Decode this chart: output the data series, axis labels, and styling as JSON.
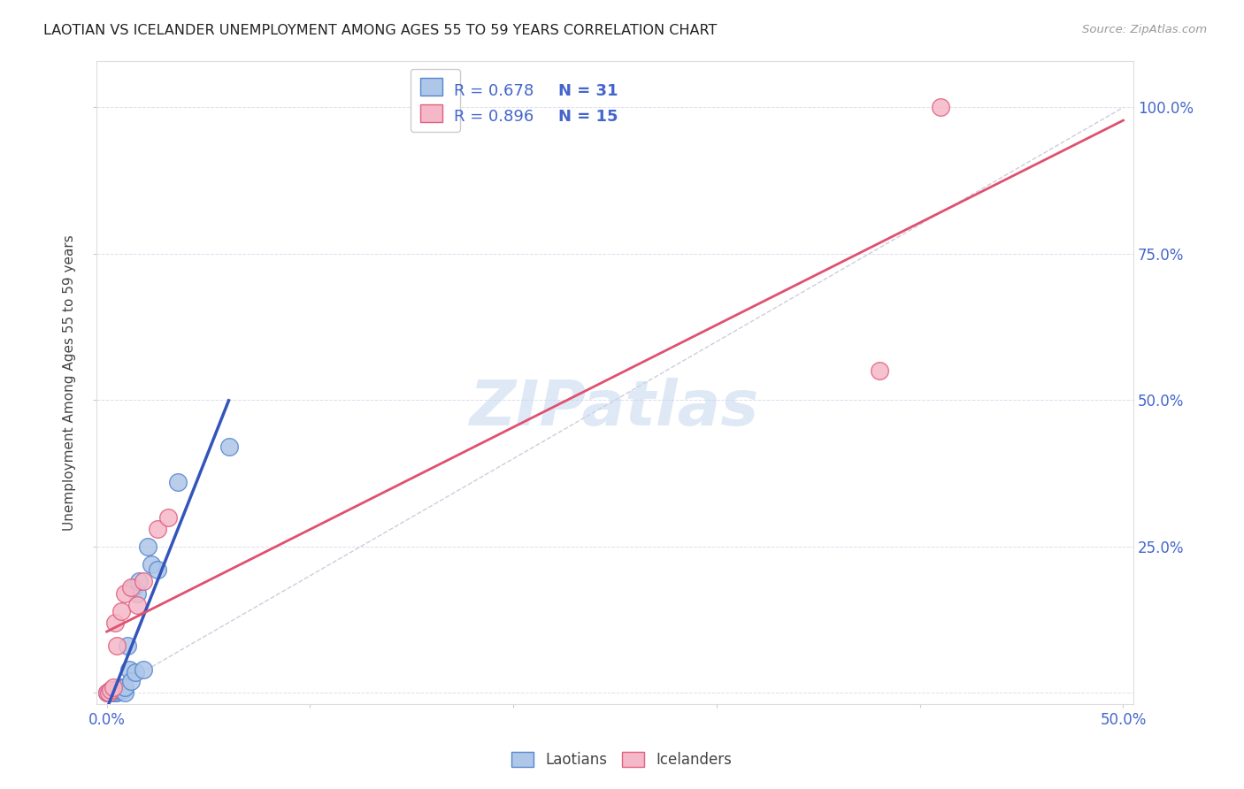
{
  "title": "LAOTIAN VS ICELANDER UNEMPLOYMENT AMONG AGES 55 TO 59 YEARS CORRELATION CHART",
  "source": "Source: ZipAtlas.com",
  "ylabel_label": "Unemployment Among Ages 55 to 59 years",
  "xlim": [
    -0.005,
    0.505
  ],
  "ylim": [
    -0.02,
    1.08
  ],
  "xticks": [
    0.0,
    0.1,
    0.2,
    0.3,
    0.4,
    0.5
  ],
  "yticks": [
    0.0,
    0.25,
    0.5,
    0.75,
    1.0
  ],
  "xtick_labels": [
    "0.0%",
    "",
    "",
    "",
    "",
    "50.0%"
  ],
  "ytick_labels_right": [
    "",
    "25.0%",
    "50.0%",
    "75.0%",
    "100.0%"
  ],
  "laotian_color": "#aec6e8",
  "icelander_color": "#f5b8c8",
  "laotian_edge_color": "#5588cc",
  "icelander_edge_color": "#e06080",
  "trend_laotian_color": "#3355bb",
  "trend_icelander_color": "#e05070",
  "diagonal_color": "#c8c8d8",
  "r_laotian": 0.678,
  "n_laotian": 31,
  "r_icelander": 0.896,
  "n_icelander": 15,
  "legend_color": "#4466cc",
  "watermark_color": "#c5d8ee",
  "background_color": "#ffffff",
  "grid_color": "#ddddee",
  "laotian_x": [
    0.0,
    0.001,
    0.002,
    0.002,
    0.003,
    0.003,
    0.004,
    0.004,
    0.005,
    0.005,
    0.005,
    0.006,
    0.006,
    0.007,
    0.007,
    0.008,
    0.009,
    0.009,
    0.01,
    0.011,
    0.012,
    0.013,
    0.014,
    0.015,
    0.016,
    0.018,
    0.02,
    0.022,
    0.025,
    0.035,
    0.06
  ],
  "laotian_y": [
    0.0,
    0.0,
    0.0,
    0.005,
    0.0,
    0.002,
    0.005,
    0.002,
    0.005,
    0.0,
    0.002,
    0.005,
    0.008,
    0.005,
    0.01,
    0.005,
    0.0,
    0.01,
    0.08,
    0.04,
    0.02,
    0.18,
    0.035,
    0.17,
    0.19,
    0.04,
    0.25,
    0.22,
    0.21,
    0.36,
    0.42
  ],
  "icelander_x": [
    0.0,
    0.001,
    0.002,
    0.003,
    0.004,
    0.005,
    0.007,
    0.009,
    0.012,
    0.015,
    0.018,
    0.025,
    0.03,
    0.38,
    0.41
  ],
  "icelander_y": [
    0.0,
    0.0,
    0.005,
    0.01,
    0.12,
    0.08,
    0.14,
    0.17,
    0.18,
    0.15,
    0.19,
    0.28,
    0.3,
    0.55,
    1.0
  ],
  "lao_trend_x": [
    0.0,
    0.035
  ],
  "ice_trend_x": [
    0.0,
    0.5
  ]
}
